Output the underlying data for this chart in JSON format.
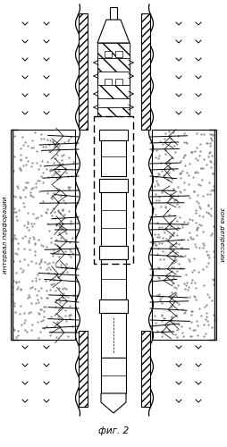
{
  "title": "фиг. 2",
  "left_label": "интервал перфорации",
  "right_label": "зона депрессии",
  "bg_color": "#ffffff",
  "line_color": "#000000",
  "fig_width": 2.54,
  "fig_height": 5.0,
  "dpi": 100
}
